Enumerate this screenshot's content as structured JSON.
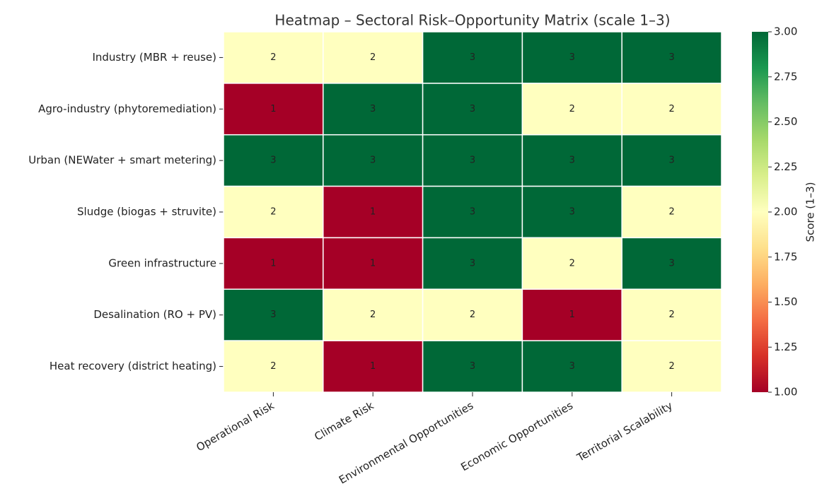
{
  "chart_data": {
    "type": "heatmap",
    "title": "Heatmap – Sectoral Risk–Opportunity Matrix (scale 1–3)",
    "categories": [
      "Operational Risk",
      "Climate Risk",
      "Environmental Opportunities",
      "Economic Opportunities",
      "Territorial Scalability"
    ],
    "rows": [
      "Industry (MBR + reuse)",
      "Agro-industry (phytoremediation)",
      "Urban (NEWater + smart metering)",
      "Sludge (biogas + struvite)",
      "Green infrastructure",
      "Desalination (RO + PV)",
      "Heat recovery (district heating)"
    ],
    "values": [
      [
        2,
        2,
        3,
        3,
        3
      ],
      [
        1,
        3,
        3,
        2,
        2
      ],
      [
        3,
        3,
        3,
        3,
        3
      ],
      [
        2,
        1,
        3,
        3,
        2
      ],
      [
        1,
        1,
        3,
        2,
        3
      ],
      [
        3,
        2,
        2,
        1,
        2
      ],
      [
        2,
        1,
        3,
        3,
        2
      ]
    ],
    "colormap": [
      "#a50026",
      "#d73027",
      "#f46d43",
      "#fdae61",
      "#fee08b",
      "#ffffbf",
      "#d9ef8b",
      "#a6d96a",
      "#66bd63",
      "#1a9850",
      "#006837"
    ],
    "clim": [
      1,
      3
    ],
    "cticks": [
      {
        "value": 1,
        "label": "1.00"
      },
      {
        "value": 1.25,
        "label": "1.25"
      },
      {
        "value": 1.5,
        "label": "1.50"
      },
      {
        "value": 1.75,
        "label": "1.75"
      },
      {
        "value": 2,
        "label": "2.00"
      },
      {
        "value": 2.25,
        "label": "2.25"
      },
      {
        "value": 2.5,
        "label": "2.50"
      },
      {
        "value": 2.75,
        "label": "2.75"
      },
      {
        "value": 3,
        "label": "3.00"
      }
    ],
    "colorbar_label": "Score (1–3)"
  }
}
